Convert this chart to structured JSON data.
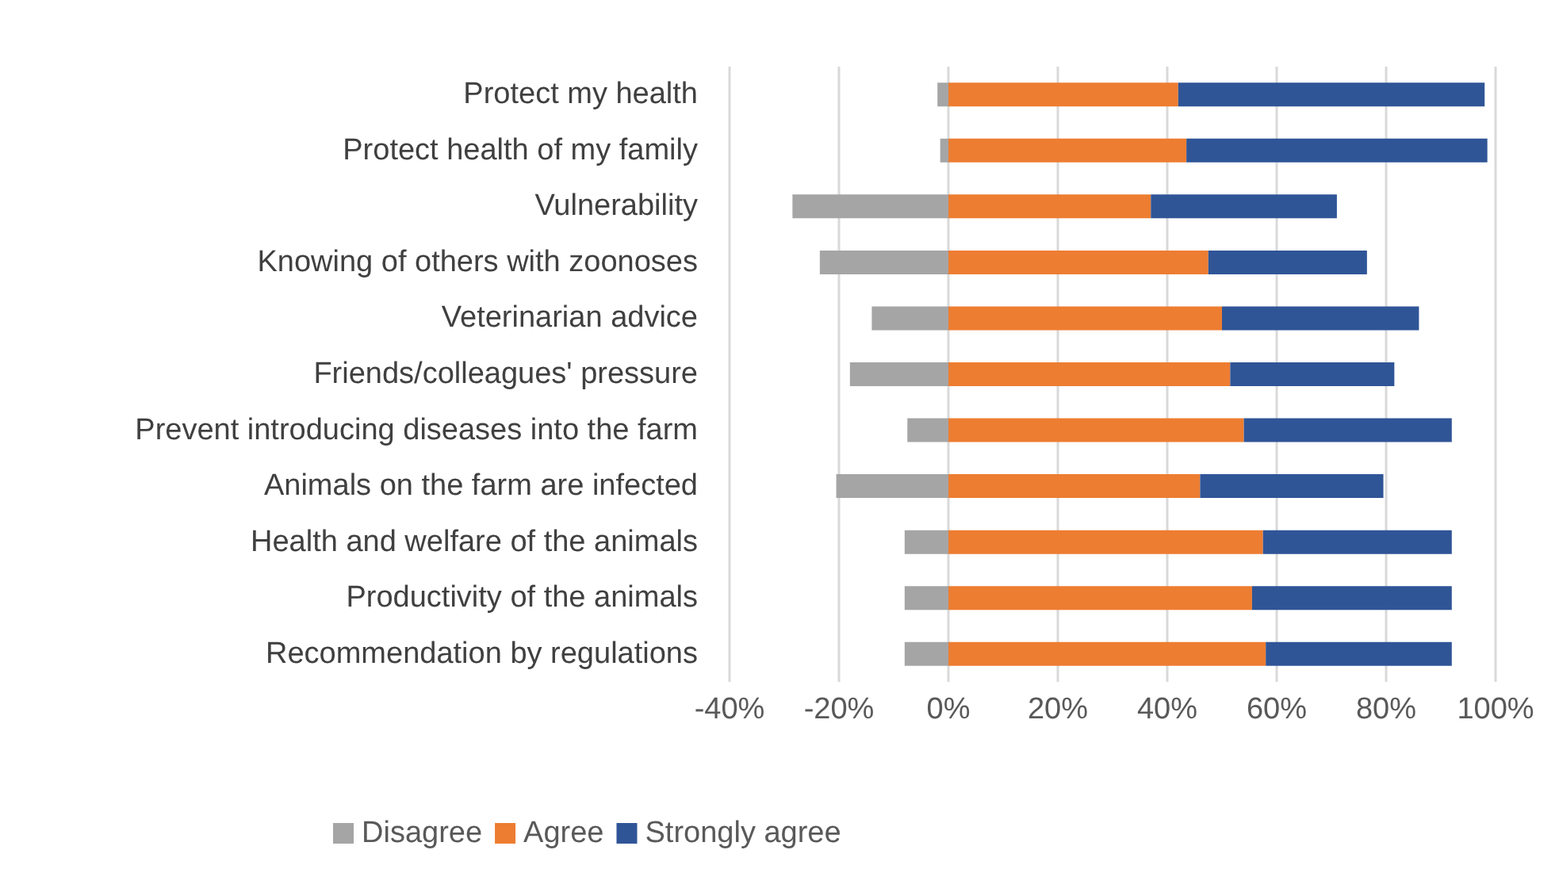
{
  "chart_data": {
    "type": "bar",
    "orientation": "horizontal",
    "stacked": true,
    "categories": [
      "Protect my health",
      "Protect health of my family",
      "Vulnerability",
      "Knowing of others with zoonoses",
      "Veterinarian advice",
      "Friends/colleagues' pressure",
      "Prevent introducing diseases into the farm",
      "Animals on the farm are infected",
      "Health and welfare of the animals",
      "Productivity of the animals",
      "Recommendation by regulations"
    ],
    "series": [
      {
        "name": "Disagree",
        "color": "#a5a5a5",
        "values": [
          -2,
          -1.5,
          -28.5,
          -23.5,
          -14,
          -18,
          -7.5,
          -20.5,
          -8,
          -8,
          -8
        ]
      },
      {
        "name": "Agree",
        "color": "#ed7d31",
        "values": [
          42,
          43.5,
          37,
          47.5,
          50,
          51.5,
          54,
          46,
          57.5,
          55.5,
          58
        ]
      },
      {
        "name": "Strongly agree",
        "color": "#2f5597",
        "values": [
          56,
          55,
          34,
          29,
          36,
          30,
          38,
          33.5,
          34.5,
          36.5,
          34
        ]
      }
    ],
    "xlim": [
      -40,
      100
    ],
    "xticks": [
      {
        "value": -40,
        "label": "-40%"
      },
      {
        "value": -20,
        "label": "-20%"
      },
      {
        "value": 0,
        "label": "0%"
      },
      {
        "value": 20,
        "label": "20%"
      },
      {
        "value": 40,
        "label": "40%"
      },
      {
        "value": 60,
        "label": "60%"
      },
      {
        "value": 80,
        "label": "80%"
      },
      {
        "value": 100,
        "label": "100%"
      }
    ],
    "grid": "x",
    "legend": "bottom"
  }
}
